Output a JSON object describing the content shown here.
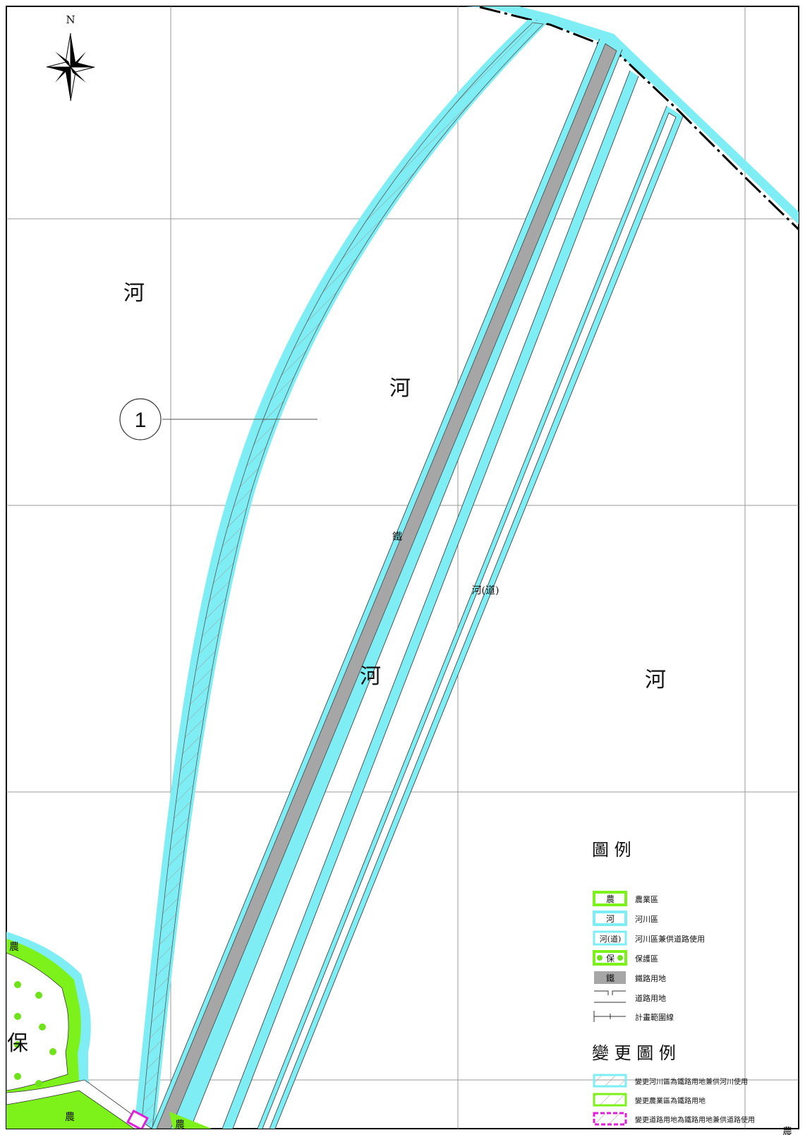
{
  "compass": {
    "north_label": "N"
  },
  "labels": {
    "river_1": "河",
    "river_2": "河",
    "river_3": "河",
    "river_4": "河",
    "railway": "鐵",
    "river_road": "河(道)",
    "protection": "保",
    "agri_1": "農",
    "agri_2": "農",
    "agri_3": "農",
    "agri_4": "農"
  },
  "callout": {
    "number": "1"
  },
  "legend": {
    "title": "圖 例",
    "items": [
      {
        "symbol": "農",
        "label": "農業區"
      },
      {
        "symbol": "河",
        "label": "河川區"
      },
      {
        "symbol": "河(道)",
        "label": "河川區兼供道路使用"
      },
      {
        "symbol": "保",
        "label": "保護區"
      },
      {
        "symbol": "鐵",
        "label": "鐵路用地"
      },
      {
        "symbol": "",
        "label": "道路用地"
      },
      {
        "symbol": "",
        "label": "計畫範圍線"
      }
    ],
    "change_title": "變 更 圖 例",
    "change_items": [
      {
        "label": "變更河川區為鐵路用地兼供河川使用"
      },
      {
        "label": "變更農業區為鐵路用地"
      },
      {
        "label": "變更道路用地為鐵路用地兼供道路使用"
      }
    ]
  },
  "colors": {
    "river": "#7eeef4",
    "agriculture": "#7cf21a",
    "protection_dot": "#6ee21a",
    "railway": "#a6a6a6",
    "change_road": "#e020d8",
    "grid": "#9a9a9a"
  }
}
